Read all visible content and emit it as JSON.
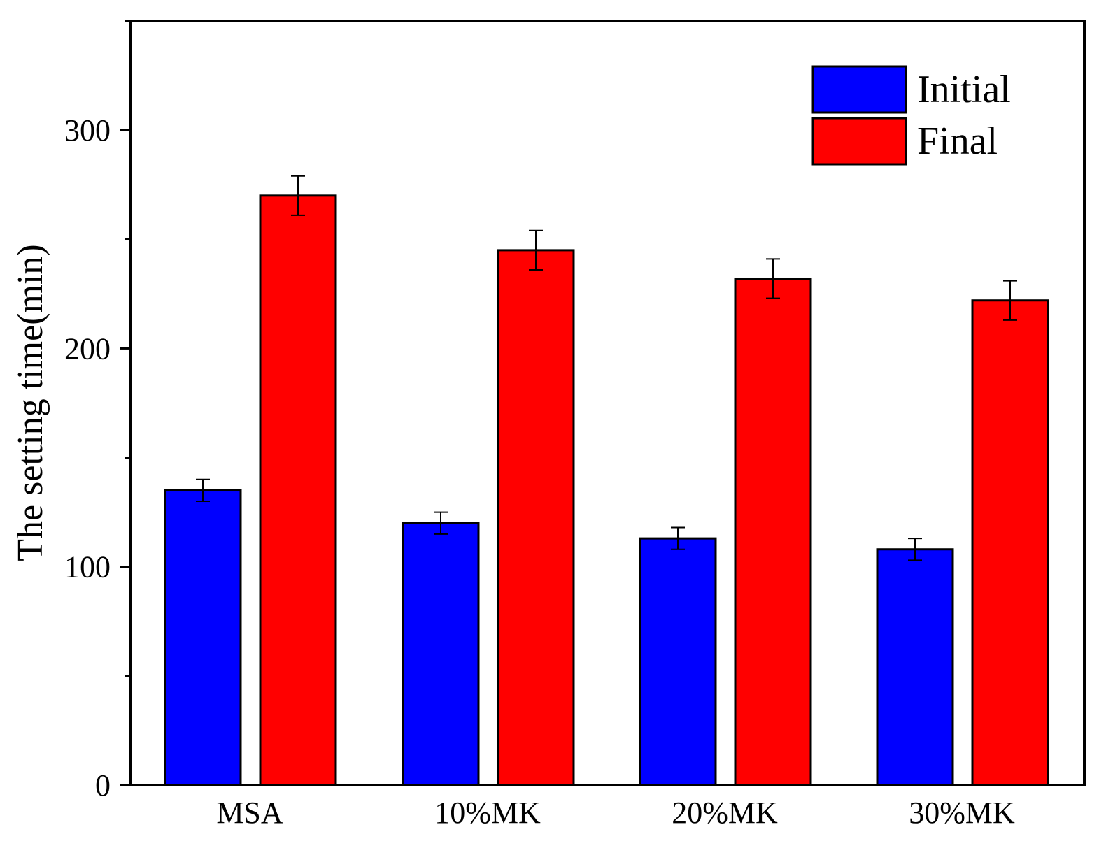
{
  "chart_data": {
    "type": "bar",
    "title": "",
    "xlabel": "",
    "ylabel": "The setting time(min)",
    "categories": [
      "MSA",
      "10%MK",
      "20%MK",
      "30%MK"
    ],
    "series": [
      {
        "name": "Initial",
        "color": "#0000ff",
        "values": [
          135,
          120,
          113,
          108
        ],
        "errors": [
          5,
          5,
          5,
          5
        ]
      },
      {
        "name": "Final",
        "color": "#ff0000",
        "values": [
          270,
          245,
          232,
          222
        ],
        "errors": [
          9,
          9,
          9,
          9
        ]
      }
    ],
    "ylim": [
      0,
      350
    ],
    "yticks": [
      0,
      100,
      200,
      300
    ],
    "yticks_labels": [
      "0",
      "100",
      "200",
      "300"
    ],
    "y_minor_step": 50,
    "grid": false,
    "error_bars": true,
    "legend_position": "top-right"
  }
}
